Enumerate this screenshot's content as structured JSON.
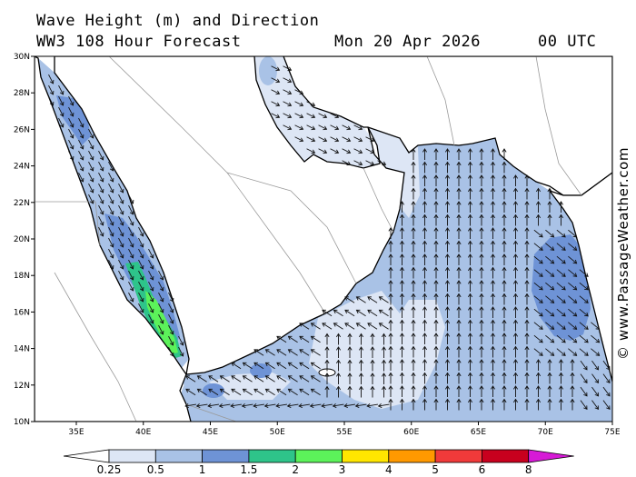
{
  "title_line1": "Wave Height (m) and Direction",
  "title_line2": "WW3 108 Hour Forecast",
  "date": "Mon 20 Apr 2026",
  "time": "00 UTC",
  "credit": "© www.PassageWeather.com",
  "lat_labels": [
    "30N",
    "28N",
    "26N",
    "24N",
    "22N",
    "20N",
    "18N",
    "16N",
    "14N",
    "12N",
    "10N"
  ],
  "lon_labels": [
    "35E",
    "40E",
    "45E",
    "50E",
    "55E",
    "60E",
    "65E",
    "70E",
    "75E"
  ],
  "legend": {
    "labels": [
      "0.25",
      "0.5",
      "1",
      "1.5",
      "2",
      "3",
      "4",
      "5",
      "6",
      "8"
    ],
    "colors": [
      "#ffffff",
      "#dde6f5",
      "#a9c2e6",
      "#6e93d6",
      "#2ec48a",
      "#5cf25a",
      "#ffe600",
      "#ff9900",
      "#f03a3a",
      "#c8001e",
      "#d61ad6"
    ]
  },
  "colors": {
    "sea_very_light": "#dde6f5",
    "sea_light": "#a9c2e6",
    "sea_medium": "#6e93d6",
    "sea_teal": "#2ec48a",
    "sea_green": "#5cf25a",
    "land": "#ffffff",
    "coast": "#000000",
    "border": "#9a9a9a"
  }
}
